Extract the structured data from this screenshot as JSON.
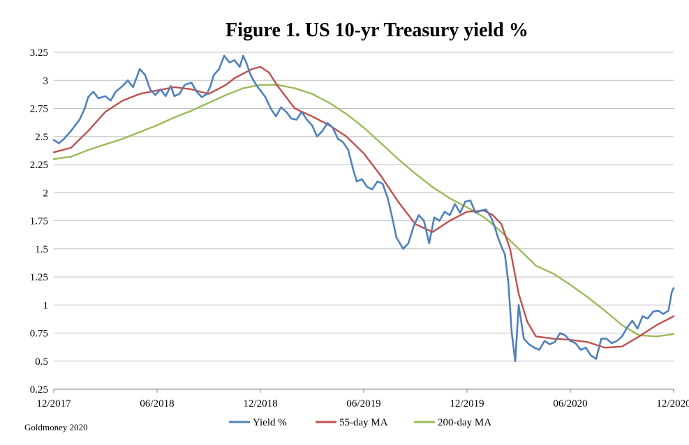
{
  "chart_data": {
    "type": "line",
    "title": "Figure 1. US 10-yr Treasury yield %",
    "source": "Goldmoney 2020",
    "ylim": [
      0.25,
      3.25
    ],
    "yticks": [
      "3.25",
      "3",
      "2.75",
      "2.5",
      "2.25",
      "2",
      "1.75",
      "1.5",
      "1.25",
      "1",
      "0.75",
      "0.5",
      "0.25"
    ],
    "ytick_values": [
      3.25,
      3.0,
      2.75,
      2.5,
      2.25,
      2.0,
      1.75,
      1.5,
      1.25,
      1.0,
      0.75,
      0.5,
      0.25
    ],
    "xticks": [
      "12/2017",
      "06/2018",
      "12/2018",
      "06/2019",
      "12/2019",
      "06/2020",
      "12/2020"
    ],
    "xrange_months": [
      0,
      36
    ],
    "xtick_months": [
      0,
      6,
      12,
      18,
      24,
      30,
      36
    ],
    "grid": true,
    "legend_position": "bottom",
    "colors": {
      "yield": "#4f81bd",
      "ma55": "#c0504d",
      "ma200": "#9bbb59",
      "grid": "#bfbfbf",
      "axis": "#808080"
    },
    "series": [
      {
        "name": "Yield %",
        "key": "yield",
        "x": [
          0,
          0.3,
          0.6,
          1.0,
          1.5,
          1.8,
          2.0,
          2.3,
          2.6,
          3.0,
          3.3,
          3.6,
          4.0,
          4.3,
          4.6,
          5.0,
          5.3,
          5.6,
          5.9,
          6.2,
          6.5,
          6.8,
          7.0,
          7.3,
          7.6,
          8.0,
          8.3,
          8.6,
          8.9,
          9.1,
          9.3,
          9.6,
          9.9,
          10.2,
          10.5,
          10.8,
          11.0,
          11.2,
          11.4,
          11.6,
          11.8,
          12.0,
          12.3,
          12.6,
          12.9,
          13.2,
          13.5,
          13.8,
          14.1,
          14.4,
          14.7,
          15.0,
          15.3,
          15.6,
          15.9,
          16.2,
          16.5,
          16.8,
          17.1,
          17.4,
          17.6,
          17.9,
          18.2,
          18.5,
          18.8,
          19.1,
          19.4,
          19.7,
          19.9,
          20.1,
          20.3,
          20.6,
          20.9,
          21.2,
          21.5,
          21.8,
          22.1,
          22.4,
          22.7,
          23.0,
          23.3,
          23.6,
          23.9,
          24.2,
          24.5,
          24.8,
          25.1,
          25.4,
          25.6,
          25.8,
          26.0,
          26.2,
          26.4,
          26.6,
          26.8,
          27.0,
          27.3,
          27.6,
          27.9,
          28.2,
          28.5,
          28.8,
          29.1,
          29.4,
          29.7,
          30.0,
          30.3,
          30.6,
          30.9,
          31.2,
          31.5,
          31.8,
          32.1,
          32.4,
          32.7,
          33.0,
          33.3,
          33.6,
          33.9,
          34.2,
          34.5,
          34.8,
          35.1,
          35.4,
          35.7,
          35.9,
          36.0
        ],
        "values": [
          2.47,
          2.44,
          2.48,
          2.55,
          2.65,
          2.75,
          2.85,
          2.9,
          2.84,
          2.86,
          2.82,
          2.9,
          2.95,
          3.0,
          2.94,
          3.1,
          3.05,
          2.92,
          2.87,
          2.92,
          2.86,
          2.95,
          2.86,
          2.88,
          2.96,
          2.98,
          2.9,
          2.85,
          2.88,
          2.95,
          3.05,
          3.1,
          3.22,
          3.16,
          3.18,
          3.12,
          3.22,
          3.15,
          3.06,
          3.0,
          2.95,
          2.91,
          2.85,
          2.75,
          2.68,
          2.76,
          2.72,
          2.66,
          2.65,
          2.72,
          2.65,
          2.6,
          2.5,
          2.55,
          2.62,
          2.58,
          2.48,
          2.45,
          2.38,
          2.2,
          2.1,
          2.12,
          2.05,
          2.03,
          2.1,
          2.08,
          1.95,
          1.75,
          1.6,
          1.55,
          1.5,
          1.55,
          1.7,
          1.8,
          1.75,
          1.55,
          1.78,
          1.75,
          1.83,
          1.8,
          1.9,
          1.82,
          1.92,
          1.93,
          1.82,
          1.84,
          1.85,
          1.78,
          1.7,
          1.6,
          1.52,
          1.45,
          1.2,
          0.75,
          0.5,
          1.0,
          0.7,
          0.65,
          0.62,
          0.6,
          0.68,
          0.65,
          0.67,
          0.75,
          0.73,
          0.68,
          0.66,
          0.6,
          0.62,
          0.55,
          0.52,
          0.7,
          0.7,
          0.66,
          0.68,
          0.72,
          0.8,
          0.86,
          0.79,
          0.9,
          0.88,
          0.94,
          0.95,
          0.92,
          0.95,
          1.12,
          1.15
        ]
      },
      {
        "name": "55-day MA",
        "key": "ma55",
        "x": [
          0,
          1,
          2,
          3,
          4,
          5,
          6,
          7,
          8,
          9,
          10,
          10.5,
          11,
          11.5,
          12,
          12.5,
          13,
          14,
          15,
          16,
          17,
          18,
          19,
          20,
          21,
          22,
          23,
          24,
          25,
          25.5,
          26,
          26.5,
          27,
          27.5,
          28,
          29,
          30,
          31,
          32,
          33,
          34,
          35,
          36
        ],
        "values": [
          2.36,
          2.4,
          2.55,
          2.72,
          2.82,
          2.88,
          2.91,
          2.94,
          2.92,
          2.88,
          2.96,
          3.02,
          3.06,
          3.1,
          3.12,
          3.07,
          2.95,
          2.75,
          2.68,
          2.6,
          2.5,
          2.35,
          2.15,
          1.92,
          1.72,
          1.65,
          1.75,
          1.83,
          1.84,
          1.8,
          1.72,
          1.5,
          1.1,
          0.85,
          0.72,
          0.7,
          0.69,
          0.67,
          0.62,
          0.63,
          0.72,
          0.82,
          0.9
        ]
      },
      {
        "name": "200-day MA",
        "key": "ma200",
        "x": [
          0,
          1,
          2,
          3,
          4,
          5,
          6,
          7,
          8,
          9,
          10,
          11,
          12,
          13,
          14,
          15,
          16,
          17,
          18,
          19,
          20,
          21,
          22,
          23,
          24,
          25,
          26,
          27,
          28,
          29,
          30,
          31,
          32,
          33,
          34,
          35,
          36
        ],
        "values": [
          2.3,
          2.32,
          2.38,
          2.43,
          2.48,
          2.54,
          2.6,
          2.67,
          2.73,
          2.8,
          2.87,
          2.93,
          2.96,
          2.96,
          2.93,
          2.88,
          2.8,
          2.7,
          2.58,
          2.44,
          2.3,
          2.17,
          2.05,
          1.95,
          1.87,
          1.78,
          1.65,
          1.5,
          1.35,
          1.28,
          1.18,
          1.07,
          0.95,
          0.82,
          0.73,
          0.72,
          0.74
        ]
      }
    ]
  }
}
